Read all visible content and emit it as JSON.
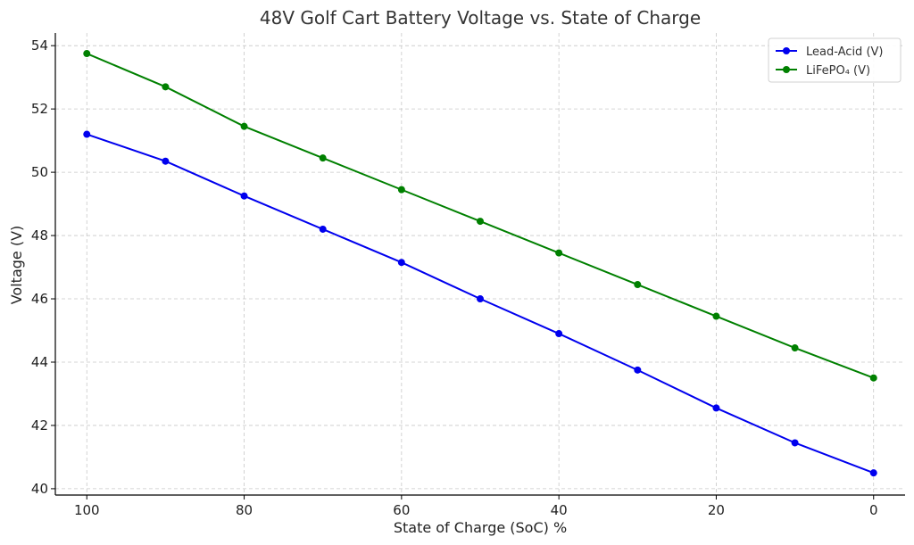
{
  "chart_data": {
    "type": "line",
    "title": "48V Golf Cart Battery Voltage vs. State of Charge",
    "xlabel": "State of Charge (SoC) %",
    "ylabel": "Voltage (V)",
    "x": [
      100,
      90,
      80,
      70,
      60,
      50,
      40,
      30,
      20,
      10,
      0
    ],
    "xlim": [
      104,
      -4
    ],
    "x_reversed": true,
    "ylim": [
      39.8,
      54.4
    ],
    "x_ticks": [
      100,
      80,
      60,
      40,
      20,
      0
    ],
    "y_ticks": [
      40,
      42,
      44,
      46,
      48,
      50,
      52,
      54
    ],
    "grid": true,
    "legend_position": "top-right",
    "series": [
      {
        "name": "Lead-Acid (V)",
        "color": "#0000ee",
        "values": [
          51.2,
          50.35,
          49.25,
          48.2,
          47.15,
          46.0,
          44.9,
          43.75,
          42.55,
          41.45,
          40.5
        ]
      },
      {
        "name": "LiFePO₄ (V)",
        "color": "#008000",
        "values": [
          53.75,
          52.7,
          51.45,
          50.45,
          49.45,
          48.45,
          47.45,
          46.45,
          45.45,
          44.45,
          43.5
        ]
      }
    ]
  }
}
